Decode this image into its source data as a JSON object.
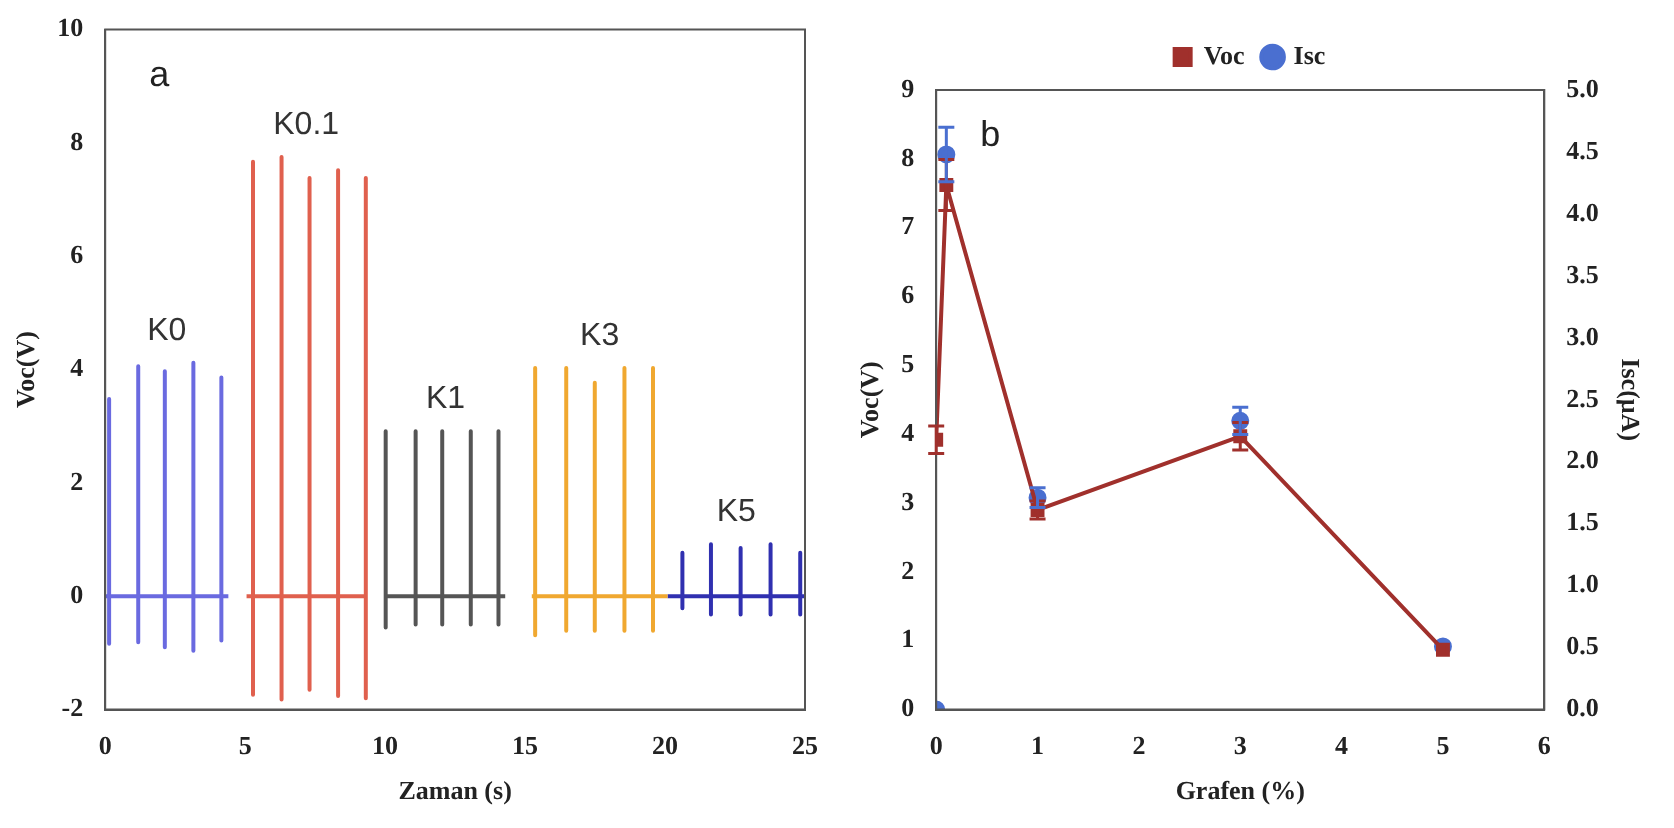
{
  "chart_data": [
    {
      "type": "line",
      "xlabel": "Zaman (s)",
      "ylabel": "Voc(V)",
      "annotations": [
        "a"
      ],
      "xlim": [
        0,
        25
      ],
      "xticks": [
        0,
        5,
        10,
        15,
        20,
        25
      ],
      "ylim": [
        -2,
        10
      ],
      "yticks": [
        -2,
        0,
        2,
        4,
        6,
        8,
        10
      ],
      "grid": false,
      "legend": false,
      "marker": "none",
      "series": [
        {
          "name": "K0",
          "color": "#6a6ae0",
          "x": [
            0,
            0.14,
            0.14,
            0.14,
            0.14,
            1.18,
            1.18,
            1.18,
            1.18,
            2.13,
            2.13,
            2.13,
            2.13,
            3.15,
            3.15,
            3.15,
            3.15,
            4.15,
            4.15,
            4.15,
            4.15,
            4.4
          ],
          "values": [
            0,
            0,
            3.48,
            -0.84,
            0,
            0,
            4.06,
            -0.81,
            0,
            0,
            3.97,
            -0.9,
            0,
            0,
            4.12,
            -0.96,
            0,
            0,
            3.86,
            -0.78,
            0,
            0
          ]
        },
        {
          "name": "K0.1",
          "color": "#e0604e",
          "x": [
            5.05,
            5.28,
            5.28,
            5.28,
            5.28,
            6.3,
            6.3,
            6.3,
            6.3,
            7.3,
            7.3,
            7.3,
            7.3,
            8.32,
            8.32,
            8.32,
            8.32,
            9.31,
            9.31,
            9.31,
            9.31
          ],
          "values": [
            0,
            0,
            7.67,
            -1.74,
            0,
            0,
            7.75,
            -1.82,
            0,
            0,
            7.38,
            -1.65,
            0,
            0,
            7.52,
            -1.76,
            0,
            0,
            7.38,
            -1.8,
            0
          ]
        },
        {
          "name": "K1",
          "color": "#555555",
          "x": [
            10.02,
            10.02,
            10.02,
            10.02,
            11.09,
            11.09,
            11.09,
            11.09,
            12.04,
            12.04,
            12.04,
            12.04,
            13.06,
            13.06,
            13.06,
            13.06,
            14.05,
            14.05,
            14.05,
            14.05,
            14.29
          ],
          "values": [
            0,
            2.91,
            -0.55,
            0,
            0,
            2.91,
            -0.5,
            0,
            0,
            2.91,
            -0.5,
            0,
            0,
            2.91,
            -0.5,
            0,
            0,
            2.91,
            -0.5,
            0,
            0
          ]
        },
        {
          "name": "K3",
          "color": "#f0a830",
          "x": [
            15.24,
            15.36,
            15.36,
            15.36,
            15.36,
            16.47,
            16.47,
            16.47,
            16.47,
            17.49,
            17.49,
            17.49,
            17.49,
            18.55,
            18.55,
            18.55,
            18.55,
            19.57,
            19.57,
            19.57,
            19.57,
            20.09
          ],
          "values": [
            0,
            0,
            4.03,
            -0.69,
            0,
            0,
            4.03,
            -0.61,
            0,
            0,
            3.77,
            -0.61,
            0,
            0,
            4.03,
            -0.61,
            0,
            0,
            4.03,
            -0.61,
            0,
            0
          ]
        },
        {
          "name": "K5",
          "color": "#3030b0",
          "x": [
            20.09,
            20.62,
            20.62,
            20.62,
            20.62,
            21.64,
            21.64,
            21.64,
            21.64,
            22.7,
            22.7,
            22.7,
            22.7,
            23.77,
            23.77,
            23.77,
            23.77,
            24.83,
            24.83,
            24.83,
            24.83,
            25
          ],
          "values": [
            0,
            0,
            0.77,
            -0.21,
            0,
            0,
            0.92,
            -0.32,
            0,
            0,
            0.85,
            -0.32,
            0,
            0,
            0.92,
            -0.32,
            0,
            0,
            0.77,
            -0.32,
            0,
            0
          ]
        }
      ]
    },
    {
      "type": "line",
      "xlabel": "Grafen (%)",
      "ylabel": "Voc(V)",
      "y2label": "Isc(µA)",
      "annotations": [
        "b"
      ],
      "x": [
        0,
        0.1,
        1,
        3,
        5
      ],
      "xlim": [
        0,
        6
      ],
      "xticks": [
        0,
        1,
        2,
        3,
        4,
        5,
        6
      ],
      "ylim": [
        0,
        9
      ],
      "yticks": [
        0,
        1,
        2,
        3,
        4,
        5,
        6,
        7,
        8,
        9
      ],
      "y2lim": [
        0,
        5
      ],
      "y2ticks": [
        {
          "value": 0,
          "label": "0.0"
        },
        {
          "value": 0.5,
          "label": "0.5"
        },
        {
          "value": 1,
          "label": "1.0"
        },
        {
          "value": 1.5,
          "label": "1.5"
        },
        {
          "value": 2,
          "label": "2.0"
        },
        {
          "value": 2.5,
          "label": "2.5"
        },
        {
          "value": 3,
          "label": "3.0"
        },
        {
          "value": 3.5,
          "label": "3.5"
        },
        {
          "value": 4,
          "label": "4.0"
        },
        {
          "value": 4.5,
          "label": "4.5"
        },
        {
          "value": 5,
          "label": "5.0"
        }
      ],
      "grid": false,
      "legend": "top",
      "series": [
        {
          "name": "Voc",
          "marker": "square",
          "color": "#a0302c",
          "values": [
            3.92,
            7.62,
            2.9,
            3.97,
            0.87
          ],
          "errors": [
            0.2,
            0.37,
            0.13,
            0.2,
            null
          ]
        },
        {
          "name": "Isc",
          "type": "scatter",
          "marker": "circle",
          "axis": "y2",
          "color": "#4a6fd0",
          "values": [
            0,
            4.48,
            1.71,
            2.33,
            0.51
          ],
          "errors": [
            null,
            0.22,
            0.08,
            0.11,
            null
          ]
        }
      ]
    }
  ]
}
